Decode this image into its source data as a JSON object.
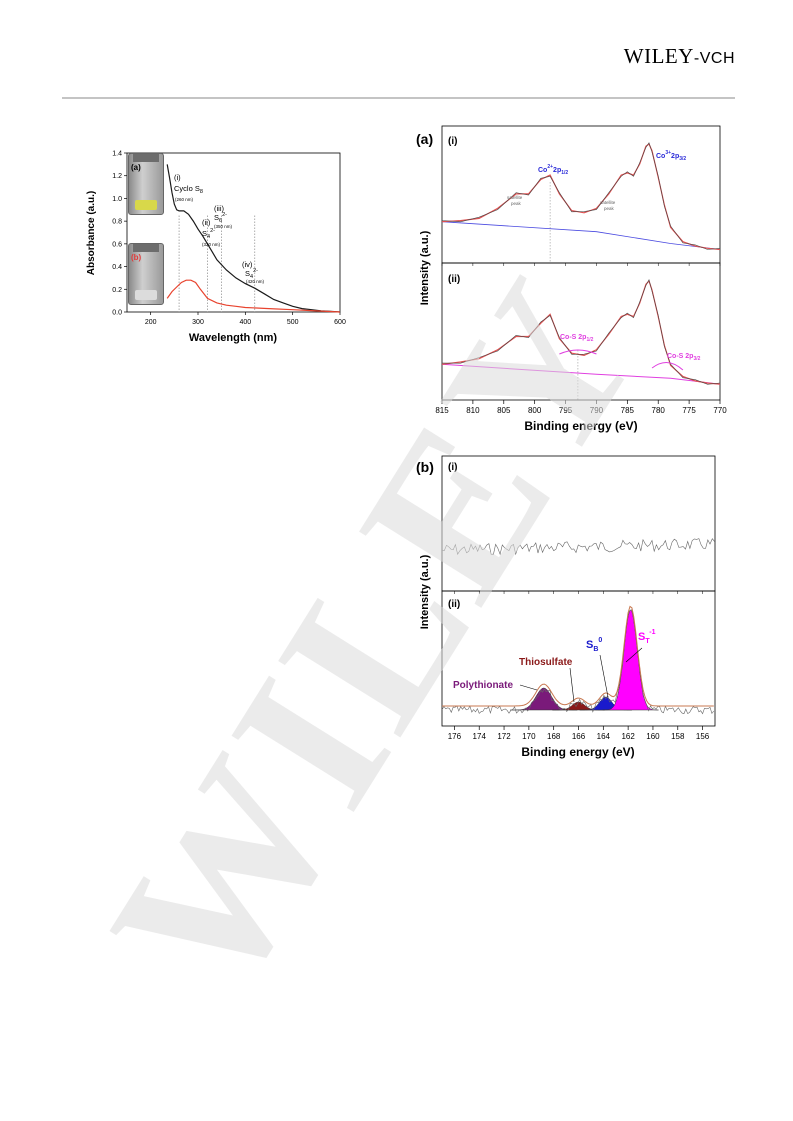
{
  "header": {
    "publisher_main": "WILEY",
    "publisher_suffix": "-VCH"
  },
  "watermark": {
    "text": "WILEY"
  },
  "uv_panel": {
    "vial_a_label": "(a)",
    "vial_b_label": "(b)",
    "annotations": {
      "i_num": "(i)",
      "i_name": "Cyclo S",
      "i_sub": "8",
      "i_nm": "(260 nm)",
      "ii_num": "(ii)",
      "ii_name": "S",
      "ii_sub": "4",
      "ii_sup": "2-",
      "ii_nm": "(320 nm)",
      "iii_num": "(iii)",
      "iii_name": "S",
      "iii_sub": "6",
      "iii_sup": "2-",
      "iii_nm": "(350 nm)",
      "iv_num": "(iv)",
      "iv_name": "S",
      "iv_sub": "4",
      "iv_sup": "2-",
      "iv_nm": "(420 nm)"
    },
    "colors": {
      "black_curve": "#1a1a1a",
      "red_curve": "#e8432e",
      "vial_a_liquid": "#d8d84a",
      "vial_b_label": "#e23b3b"
    }
  },
  "xps_a": {
    "panel_label": "(a)",
    "sub_i": "(i)",
    "sub_ii": "(ii)",
    "labels": {
      "co2_half_pre": "Co",
      "co2_half_sup": "2+",
      "co2_half_post": "2p",
      "co2_half_sub": "1/2",
      "co3_pre": "Co",
      "co3_sup": "3+",
      "co3_post": "2p",
      "co3_sub": "3/2",
      "satellite": "satellite",
      "peak": "peak",
      "cos_half_main": "Co-S 2p",
      "cos_half_sub": "1/2",
      "cos_3half_main": "Co-S  2p",
      "cos_3half_sub": "3/2"
    },
    "colors": {
      "envelope": "#e05050",
      "component": "#4a4ae0",
      "cos": "#e040e0",
      "raw": "#555555"
    }
  },
  "xps_b": {
    "panel_label": "(b)",
    "sub_i": "(i)",
    "sub_ii": "(ii)",
    "labels": {
      "polythionate": "Polythionate",
      "thiosulfate": "Thiosulfate",
      "sb_main": "S",
      "sb_sub": "B",
      "sb_sup": "0",
      "st_main": "S",
      "st_sub": "T",
      "st_sup": "-1"
    },
    "colors": {
      "polythionate": "#7a1a7a",
      "thiosulfate": "#8b1a1a",
      "sb": "#1a1acc",
      "st": "#ff00ff",
      "envelope": "#c87850",
      "raw": "#666666"
    }
  },
  "chart_data": [
    {
      "type": "line",
      "xlabel": "Wavelength (nm)",
      "ylabel": "Absorbance (a.u.)",
      "xlim": [
        150,
        600
      ],
      "ylim": [
        0,
        1.4
      ],
      "x_ticks": [
        200,
        300,
        400,
        500,
        600
      ],
      "y_ticks": [
        0.0,
        0.2,
        0.4,
        0.6,
        0.8,
        1.0,
        1.2,
        1.4
      ],
      "y_tick_labels": [
        "0.0",
        "0.2",
        "0.4",
        "0.6",
        "0.8",
        "1.0",
        "1.2",
        "1.4"
      ],
      "series": [
        {
          "x": [
            235,
            240,
            245,
            250,
            255,
            260,
            265,
            270,
            280,
            290,
            300,
            310,
            320,
            330,
            340,
            360,
            380,
            400,
            420,
            440,
            460,
            480,
            500,
            520,
            540,
            560,
            580,
            600
          ],
          "y": [
            1.3,
            1.18,
            1.05,
            0.95,
            0.9,
            0.89,
            0.89,
            0.89,
            0.86,
            0.8,
            0.73,
            0.67,
            0.6,
            0.53,
            0.46,
            0.37,
            0.3,
            0.25,
            0.21,
            0.16,
            0.11,
            0.08,
            0.05,
            0.03,
            0.02,
            0.01,
            0.005,
            0.0
          ]
        },
        {
          "x": [
            235,
            245,
            255,
            265,
            275,
            285,
            295,
            305,
            320,
            340,
            360,
            380,
            400,
            450,
            500,
            550,
            600
          ],
          "y": [
            0.12,
            0.18,
            0.22,
            0.26,
            0.28,
            0.28,
            0.26,
            0.2,
            0.12,
            0.08,
            0.06,
            0.05,
            0.04,
            0.03,
            0.02,
            0.01,
            0.0
          ]
        }
      ],
      "markers_nm": [
        260,
        320,
        350,
        420
      ]
    },
    {
      "type": "line",
      "panel": "(a)",
      "xlabel": "Binding energy (eV)",
      "ylabel": "Intensity (a.u.)",
      "xlim": [
        815,
        770
      ],
      "x_ticks": [
        815,
        810,
        805,
        800,
        795,
        790,
        785,
        780,
        775,
        770
      ],
      "subpanels": [
        {
          "name": "(i)",
          "x": [
            815,
            812,
            809,
            806,
            803,
            801,
            799,
            797.5,
            796,
            794,
            792,
            790,
            788,
            786,
            785,
            784,
            783,
            782,
            781.5,
            781,
            780,
            779,
            778,
            776,
            774,
            772,
            770
          ],
          "y": [
            0.3,
            0.31,
            0.33,
            0.42,
            0.55,
            0.55,
            0.68,
            0.72,
            0.55,
            0.4,
            0.38,
            0.42,
            0.55,
            0.72,
            0.74,
            0.72,
            0.82,
            0.98,
            1.0,
            0.94,
            0.7,
            0.45,
            0.25,
            0.12,
            0.08,
            0.06,
            0.05
          ]
        },
        {
          "name": "(ii)",
          "x": [
            815,
            812,
            809,
            806,
            803,
            801,
            799,
            797.5,
            796,
            794,
            792,
            790,
            788,
            786,
            785,
            784,
            783,
            782,
            781.5,
            781,
            780,
            779,
            778,
            776,
            774,
            772,
            770
          ],
          "y": [
            0.25,
            0.27,
            0.3,
            0.38,
            0.5,
            0.5,
            0.62,
            0.7,
            0.48,
            0.35,
            0.33,
            0.38,
            0.52,
            0.68,
            0.7,
            0.68,
            0.8,
            0.97,
            1.0,
            0.92,
            0.68,
            0.42,
            0.24,
            0.14,
            0.1,
            0.08,
            0.07
          ]
        }
      ],
      "markers_eV": [
        797.5,
        793
      ]
    },
    {
      "type": "line",
      "panel": "(b)",
      "xlabel": "Binding energy (eV)",
      "ylabel": "Intensity (a.u.)",
      "xlim": [
        177,
        155
      ],
      "x_ticks": [
        176,
        174,
        172,
        170,
        168,
        166,
        164,
        162,
        160,
        158,
        156
      ],
      "subpanels": [
        {
          "name": "(i)",
          "description_values": {
            "baseline": 0.15,
            "noise": 0.05
          }
        },
        {
          "name": "(ii)",
          "components": [
            {
              "name": "Polythionate",
              "center": 168.8,
              "height": 0.22,
              "width": 0.9
            },
            {
              "name": "Thiosulfate",
              "center": 166.0,
              "height": 0.08,
              "width": 0.7
            },
            {
              "name": "SB0",
              "center": 163.8,
              "height": 0.13,
              "width": 0.7
            },
            {
              "name": "ST-1",
              "center": 161.8,
              "height": 1.0,
              "width": 0.75
            }
          ]
        }
      ]
    }
  ]
}
